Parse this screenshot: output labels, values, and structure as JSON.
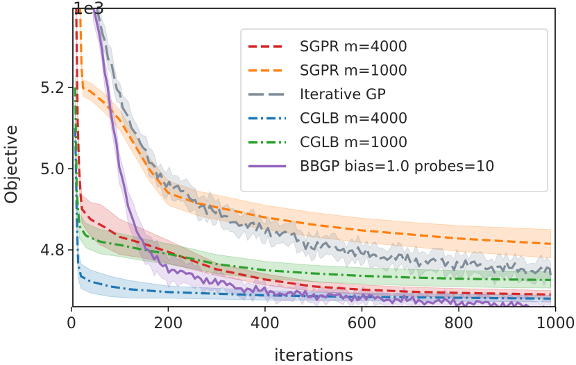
{
  "chart_data": {
    "type": "line",
    "title": "",
    "xlabel": "iterations",
    "ylabel": "Objective",
    "y_scale_label": "1e3",
    "xlim": [
      0,
      1000
    ],
    "ylim": [
      4.66,
      5.395
    ],
    "x_ticks": [
      0,
      200,
      400,
      600,
      800,
      1000
    ],
    "y_ticks": [
      4.8,
      5.0,
      5.2
    ],
    "x_tick_labels": [
      "0",
      "200",
      "400",
      "600",
      "800",
      "1000"
    ],
    "y_tick_labels": [
      "4.8",
      "5.0",
      "5.2"
    ],
    "grid": false,
    "legend_position": "top-right",
    "series": [
      {
        "name": "SGPR m=4000",
        "color": "#d62728",
        "dash": "dashed",
        "noise": 0,
        "points": [
          [
            10,
            5.4
          ],
          [
            13,
            5.12
          ],
          [
            17,
            4.96
          ],
          [
            22,
            4.9
          ],
          [
            40,
            4.875
          ],
          [
            70,
            4.855
          ],
          [
            100,
            4.832
          ],
          [
            150,
            4.815
          ],
          [
            200,
            4.795
          ],
          [
            300,
            4.752
          ],
          [
            400,
            4.727
          ],
          [
            500,
            4.71
          ],
          [
            600,
            4.702
          ],
          [
            700,
            4.697
          ],
          [
            800,
            4.694
          ],
          [
            900,
            4.692
          ],
          [
            990,
            4.69
          ]
        ],
        "band": [
          [
            10,
            0.03
          ],
          [
            60,
            0.05
          ],
          [
            150,
            0.035
          ],
          [
            300,
            0.015
          ],
          [
            500,
            0.012
          ],
          [
            990,
            0.01
          ]
        ]
      },
      {
        "name": "SGPR m=1000",
        "color": "#ff7f0e",
        "dash": "dashed",
        "noise": 0,
        "points": [
          [
            18,
            5.4
          ],
          [
            22,
            5.2
          ],
          [
            40,
            5.19
          ],
          [
            70,
            5.16
          ],
          [
            100,
            5.12
          ],
          [
            130,
            5.06
          ],
          [
            160,
            5.0
          ],
          [
            200,
            4.94
          ],
          [
            260,
            4.915
          ],
          [
            300,
            4.905
          ],
          [
            400,
            4.88
          ],
          [
            500,
            4.862
          ],
          [
            600,
            4.848
          ],
          [
            700,
            4.838
          ],
          [
            800,
            4.828
          ],
          [
            900,
            4.821
          ],
          [
            990,
            4.815
          ]
        ],
        "band": [
          [
            18,
            0.02
          ],
          [
            200,
            0.03
          ],
          [
            400,
            0.03
          ],
          [
            700,
            0.03
          ],
          [
            990,
            0.035
          ]
        ]
      },
      {
        "name": "Iterative GP",
        "color": "#7f8c99",
        "dash": "longdash",
        "noise": 0.011,
        "points": [
          [
            52,
            5.4
          ],
          [
            70,
            5.3
          ],
          [
            100,
            5.18
          ],
          [
            130,
            5.09
          ],
          [
            160,
            5.02
          ],
          [
            200,
            4.96
          ],
          [
            240,
            4.935
          ],
          [
            280,
            4.9
          ],
          [
            320,
            4.88
          ],
          [
            360,
            4.86
          ],
          [
            400,
            4.85
          ],
          [
            450,
            4.835
          ],
          [
            500,
            4.81
          ],
          [
            550,
            4.805
          ],
          [
            600,
            4.79
          ],
          [
            650,
            4.783
          ],
          [
            700,
            4.775
          ],
          [
            750,
            4.77
          ],
          [
            800,
            4.765
          ],
          [
            850,
            4.76
          ],
          [
            900,
            4.755
          ],
          [
            950,
            4.75
          ],
          [
            990,
            4.745
          ]
        ],
        "band": [
          [
            52,
            0.03
          ],
          [
            200,
            0.03
          ],
          [
            500,
            0.025
          ],
          [
            990,
            0.025
          ]
        ]
      },
      {
        "name": "CGLB m=4000",
        "color": "#1f77b4",
        "dash": "dashdot",
        "noise": 0,
        "points": [
          [
            8,
            5.1
          ],
          [
            10,
            4.95
          ],
          [
            13,
            4.77
          ],
          [
            20,
            4.735
          ],
          [
            40,
            4.722
          ],
          [
            80,
            4.71
          ],
          [
            120,
            4.703
          ],
          [
            200,
            4.696
          ],
          [
            300,
            4.692
          ],
          [
            400,
            4.688
          ],
          [
            500,
            4.686
          ],
          [
            600,
            4.684
          ],
          [
            700,
            4.683
          ],
          [
            800,
            4.682
          ],
          [
            900,
            4.681
          ],
          [
            990,
            4.68
          ]
        ],
        "band": [
          [
            8,
            0.04
          ],
          [
            20,
            0.03
          ],
          [
            80,
            0.025
          ],
          [
            200,
            0.015
          ],
          [
            500,
            0.01
          ],
          [
            990,
            0.008
          ]
        ]
      },
      {
        "name": "CGLB m=1000",
        "color": "#2ca02c",
        "dash": "dashdot",
        "noise": 0,
        "points": [
          [
            8,
            5.2
          ],
          [
            11,
            4.95
          ],
          [
            16,
            4.86
          ],
          [
            30,
            4.835
          ],
          [
            60,
            4.82
          ],
          [
            100,
            4.812
          ],
          [
            150,
            4.8
          ],
          [
            200,
            4.79
          ],
          [
            250,
            4.778
          ],
          [
            300,
            4.765
          ],
          [
            400,
            4.75
          ],
          [
            500,
            4.742
          ],
          [
            600,
            4.736
          ],
          [
            700,
            4.732
          ],
          [
            800,
            4.729
          ],
          [
            900,
            4.727
          ],
          [
            990,
            4.726
          ]
        ],
        "band": [
          [
            8,
            0.03
          ],
          [
            60,
            0.03
          ],
          [
            200,
            0.025
          ],
          [
            500,
            0.02
          ],
          [
            990,
            0.02
          ]
        ]
      },
      {
        "name": "BBGP bias=1.0 probes=10",
        "color": "#9467bd",
        "dash": "solid",
        "noise": 0.008,
        "points": [
          [
            45,
            5.4
          ],
          [
            60,
            5.32
          ],
          [
            80,
            5.15
          ],
          [
            100,
            5.0
          ],
          [
            120,
            4.9
          ],
          [
            140,
            4.835
          ],
          [
            160,
            4.79
          ],
          [
            200,
            4.755
          ],
          [
            250,
            4.735
          ],
          [
            300,
            4.72
          ],
          [
            350,
            4.706
          ],
          [
            400,
            4.697
          ],
          [
            500,
            4.688
          ],
          [
            600,
            4.683
          ],
          [
            700,
            4.675
          ],
          [
            800,
            4.67
          ],
          [
            900,
            4.665
          ],
          [
            990,
            4.655
          ]
        ],
        "band": [
          [
            45,
            0.03
          ],
          [
            140,
            0.04
          ],
          [
            300,
            0.02
          ],
          [
            600,
            0.015
          ],
          [
            990,
            0.02
          ]
        ]
      }
    ]
  }
}
